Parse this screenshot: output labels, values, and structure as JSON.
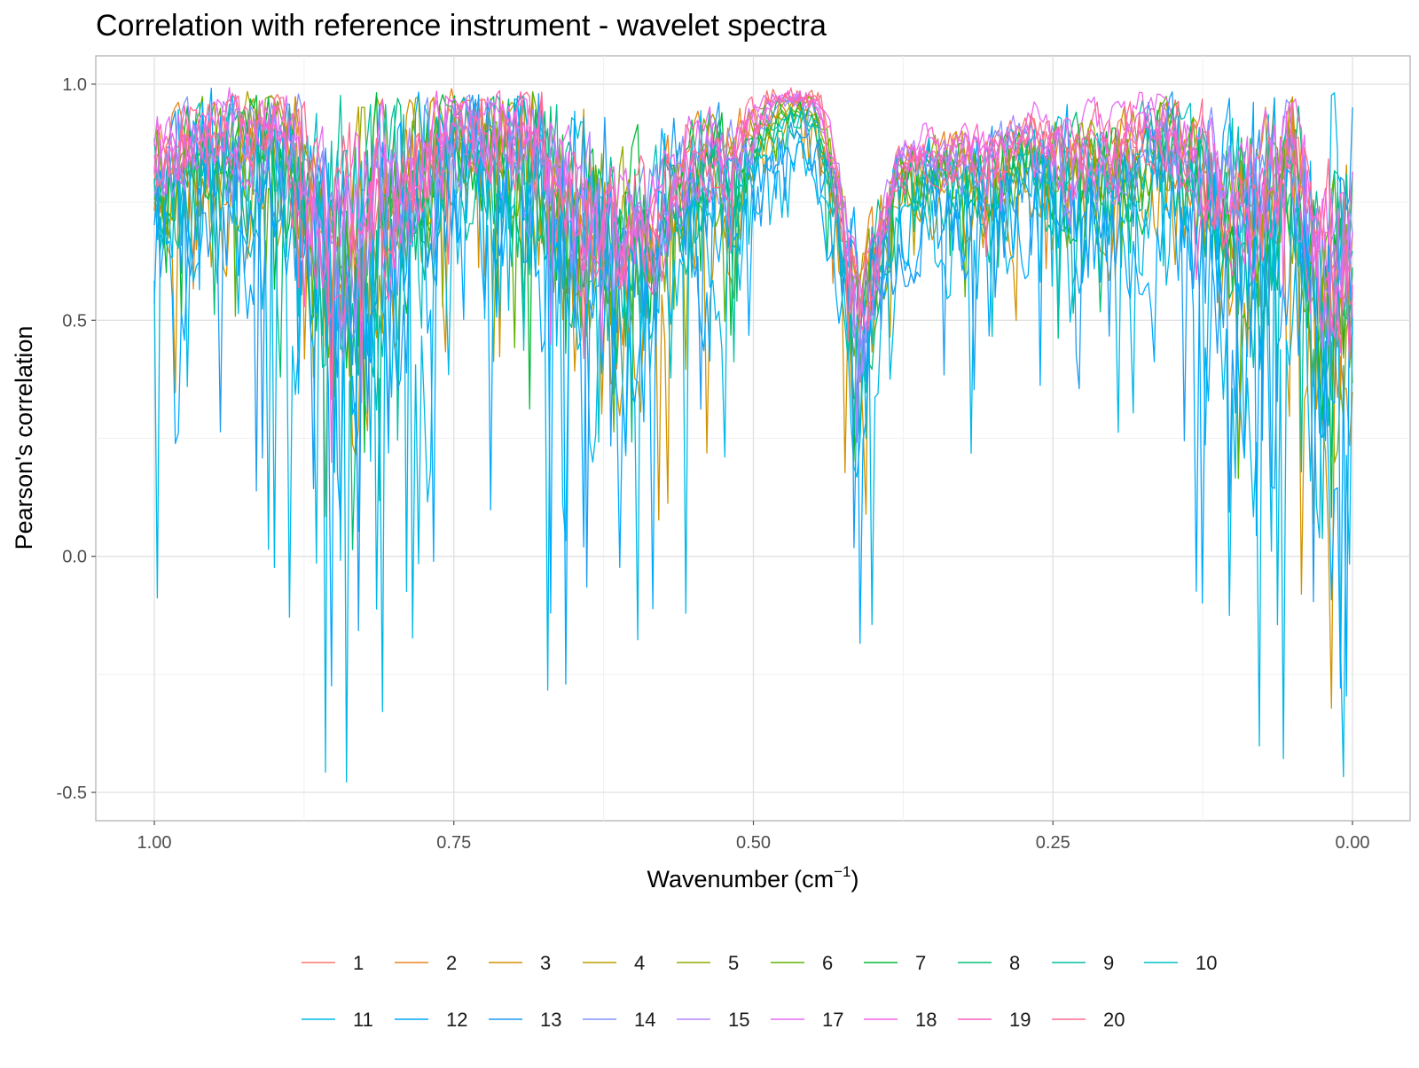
{
  "chart_data": {
    "type": "line",
    "title": "Correlation with reference instrument - wavelet spectra",
    "xlabel": "Wavenumber",
    "xlabel_unit_base": "cm",
    "xlabel_unit_exp": "−1",
    "ylabel": "Pearson's correlation",
    "xlim": [
      1.0,
      0.0
    ],
    "ylim": [
      -0.56,
      1.06
    ],
    "x_reversed": true,
    "grid": true,
    "legend_position": "bottom",
    "x_ticks": [
      1.0,
      0.75,
      0.5,
      0.25,
      0.0
    ],
    "x_tick_labels": [
      "1.00",
      "0.75",
      "0.50",
      "0.25",
      "0.00"
    ],
    "y_ticks": [
      1.0,
      0.5,
      0.0,
      -0.5
    ],
    "y_tick_labels": [
      "1.0",
      "0.5",
      "0.0",
      "-0.5"
    ],
    "n_points": 400,
    "anchors": {
      "x": [
        1.0,
        0.96,
        0.9,
        0.87,
        0.85,
        0.81,
        0.77,
        0.75,
        0.72,
        0.68,
        0.65,
        0.62,
        0.58,
        0.55,
        0.52,
        0.5,
        0.48,
        0.45,
        0.43,
        0.41,
        0.38,
        0.35,
        0.3,
        0.27,
        0.24,
        0.2,
        0.16,
        0.12,
        0.08,
        0.05,
        0.02,
        0.0
      ],
      "center": [
        0.82,
        0.86,
        0.9,
        0.76,
        0.62,
        0.72,
        0.84,
        0.9,
        0.9,
        0.86,
        0.72,
        0.66,
        0.7,
        0.84,
        0.82,
        0.9,
        0.97,
        0.98,
        0.8,
        0.45,
        0.82,
        0.84,
        0.82,
        0.9,
        0.82,
        0.85,
        0.9,
        0.8,
        0.72,
        0.85,
        0.58,
        0.55
      ],
      "noise": [
        0.14,
        0.13,
        0.13,
        0.2,
        0.28,
        0.25,
        0.16,
        0.12,
        0.14,
        0.18,
        0.2,
        0.22,
        0.16,
        0.12,
        0.12,
        0.07,
        0.03,
        0.03,
        0.08,
        0.18,
        0.07,
        0.07,
        0.1,
        0.07,
        0.12,
        0.11,
        0.1,
        0.15,
        0.2,
        0.16,
        0.28,
        0.3
      ]
    },
    "series": [
      {
        "name": "1",
        "color": "#F8766D",
        "noise_mult": 0.45,
        "quality": 0.03,
        "outlier_rate": 0.01,
        "min_dip": -0.05
      },
      {
        "name": "2",
        "color": "#E7861B",
        "noise_mult": 0.75,
        "quality": -0.02,
        "outlier_rate": 0.03,
        "min_dip": -0.15
      },
      {
        "name": "3",
        "color": "#D39200",
        "noise_mult": 1.15,
        "quality": -0.08,
        "outlier_rate": 0.07,
        "min_dip": -0.33
      },
      {
        "name": "4",
        "color": "#B79F00",
        "noise_mult": 0.75,
        "quality": -0.02,
        "outlier_rate": 0.03,
        "min_dip": 0.05
      },
      {
        "name": "5",
        "color": "#93AA00",
        "noise_mult": 0.8,
        "quality": -0.03,
        "outlier_rate": 0.03,
        "min_dip": 0.05
      },
      {
        "name": "6",
        "color": "#5EB300",
        "noise_mult": 0.8,
        "quality": -0.04,
        "outlier_rate": 0.03,
        "min_dip": 0.05
      },
      {
        "name": "7",
        "color": "#00BA38",
        "noise_mult": 0.85,
        "quality": -0.04,
        "outlier_rate": 0.03,
        "min_dip": 0.05
      },
      {
        "name": "8",
        "color": "#00BF74",
        "noise_mult": 0.9,
        "quality": -0.05,
        "outlier_rate": 0.04,
        "min_dip": 0.0
      },
      {
        "name": "9",
        "color": "#00C19F",
        "noise_mult": 1.0,
        "quality": -0.06,
        "outlier_rate": 0.05,
        "min_dip": 0.0
      },
      {
        "name": "10",
        "color": "#00BFC4",
        "noise_mult": 0.9,
        "quality": -0.05,
        "outlier_rate": 0.04,
        "min_dip": 0.02
      },
      {
        "name": "11",
        "color": "#00B8E7",
        "noise_mult": 1.6,
        "quality": -0.14,
        "outlier_rate": 0.14,
        "min_dip": -0.49
      },
      {
        "name": "12",
        "color": "#00A9FF",
        "noise_mult": 1.45,
        "quality": -0.12,
        "outlier_rate": 0.1,
        "min_dip": -0.3
      },
      {
        "name": "13",
        "color": "#1E9BF0",
        "noise_mult": 1.3,
        "quality": -0.1,
        "outlier_rate": 0.08,
        "min_dip": -0.2
      },
      {
        "name": "14",
        "color": "#8494FF",
        "noise_mult": 0.7,
        "quality": -0.01,
        "outlier_rate": 0.02,
        "min_dip": 0.1
      },
      {
        "name": "15",
        "color": "#B385FF",
        "noise_mult": 0.6,
        "quality": 0.0,
        "outlier_rate": 0.02,
        "min_dip": 0.1
      },
      {
        "name": "17",
        "color": "#E76BF3",
        "noise_mult": 0.45,
        "quality": 0.05,
        "outlier_rate": 0.01,
        "min_dip": -0.1
      },
      {
        "name": "18",
        "color": "#F564E3",
        "noise_mult": 0.55,
        "quality": 0.02,
        "outlier_rate": 0.02,
        "min_dip": 0.05
      },
      {
        "name": "19",
        "color": "#FF61C3",
        "noise_mult": 0.6,
        "quality": 0.01,
        "outlier_rate": 0.02,
        "min_dip": 0.0
      },
      {
        "name": "20",
        "color": "#FF6C91",
        "noise_mult": 0.65,
        "quality": 0.01,
        "outlier_rate": 0.03,
        "min_dip": 0.0
      }
    ]
  }
}
